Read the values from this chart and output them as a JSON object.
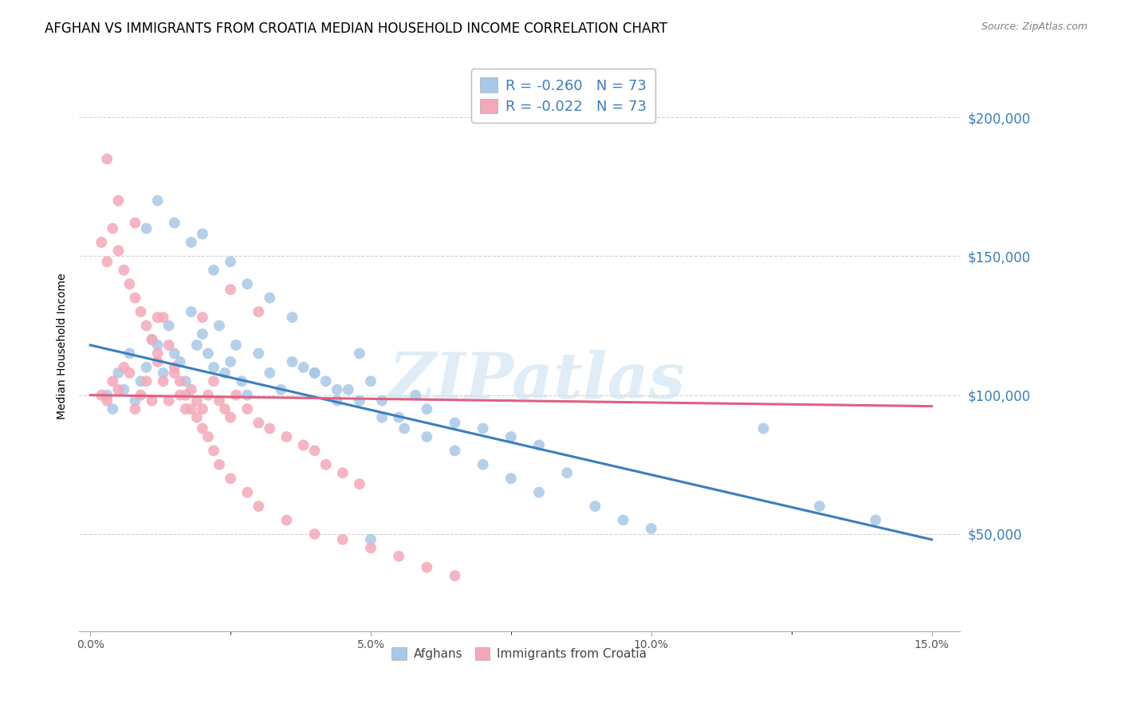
{
  "title": "AFGHAN VS IMMIGRANTS FROM CROATIA MEDIAN HOUSEHOLD INCOME CORRELATION CHART",
  "source": "Source: ZipAtlas.com",
  "ylabel": "Median Household Income",
  "xlabel_ticks": [
    "0.0%",
    "",
    "5.0%",
    "",
    "10.0%",
    "",
    "15.0%"
  ],
  "xlabel_vals": [
    0.0,
    0.025,
    0.05,
    0.075,
    0.1,
    0.125,
    0.15
  ],
  "ytick_labels": [
    "$50,000",
    "$100,000",
    "$150,000",
    "$200,000"
  ],
  "ytick_vals": [
    50000,
    100000,
    150000,
    200000
  ],
  "xlim": [
    -0.002,
    0.155
  ],
  "ylim": [
    15000,
    220000
  ],
  "watermark": "ZIPatlas",
  "blue_scatter_x": [
    0.003,
    0.004,
    0.005,
    0.006,
    0.007,
    0.008,
    0.009,
    0.01,
    0.011,
    0.012,
    0.013,
    0.014,
    0.015,
    0.016,
    0.017,
    0.018,
    0.019,
    0.02,
    0.021,
    0.022,
    0.023,
    0.024,
    0.025,
    0.026,
    0.027,
    0.028,
    0.03,
    0.032,
    0.034,
    0.036,
    0.038,
    0.04,
    0.042,
    0.044,
    0.046,
    0.048,
    0.05,
    0.052,
    0.055,
    0.058,
    0.06,
    0.065,
    0.07,
    0.075,
    0.08,
    0.01,
    0.012,
    0.015,
    0.018,
    0.02,
    0.022,
    0.025,
    0.028,
    0.032,
    0.036,
    0.04,
    0.044,
    0.048,
    0.052,
    0.056,
    0.06,
    0.065,
    0.07,
    0.075,
    0.08,
    0.09,
    0.095,
    0.1,
    0.12,
    0.13,
    0.14,
    0.085,
    0.05
  ],
  "blue_scatter_y": [
    100000,
    95000,
    108000,
    102000,
    115000,
    98000,
    105000,
    110000,
    120000,
    118000,
    108000,
    125000,
    115000,
    112000,
    105000,
    130000,
    118000,
    122000,
    115000,
    110000,
    125000,
    108000,
    112000,
    118000,
    105000,
    100000,
    115000,
    108000,
    102000,
    112000,
    110000,
    108000,
    105000,
    98000,
    102000,
    115000,
    105000,
    98000,
    92000,
    100000,
    95000,
    90000,
    88000,
    85000,
    82000,
    160000,
    170000,
    162000,
    155000,
    158000,
    145000,
    148000,
    140000,
    135000,
    128000,
    108000,
    102000,
    98000,
    92000,
    88000,
    85000,
    80000,
    75000,
    70000,
    65000,
    60000,
    55000,
    52000,
    88000,
    60000,
    55000,
    72000,
    48000
  ],
  "pink_scatter_x": [
    0.002,
    0.003,
    0.004,
    0.005,
    0.006,
    0.007,
    0.008,
    0.009,
    0.01,
    0.011,
    0.012,
    0.013,
    0.014,
    0.015,
    0.016,
    0.017,
    0.018,
    0.019,
    0.02,
    0.021,
    0.022,
    0.023,
    0.024,
    0.025,
    0.026,
    0.028,
    0.03,
    0.032,
    0.035,
    0.038,
    0.04,
    0.042,
    0.045,
    0.048,
    0.002,
    0.003,
    0.004,
    0.005,
    0.006,
    0.007,
    0.008,
    0.009,
    0.01,
    0.011,
    0.012,
    0.013,
    0.014,
    0.015,
    0.016,
    0.017,
    0.018,
    0.019,
    0.02,
    0.021,
    0.022,
    0.023,
    0.025,
    0.028,
    0.03,
    0.035,
    0.04,
    0.045,
    0.05,
    0.055,
    0.06,
    0.065,
    0.03,
    0.025,
    0.02,
    0.003,
    0.005,
    0.008,
    0.012
  ],
  "pink_scatter_y": [
    100000,
    98000,
    105000,
    102000,
    110000,
    108000,
    95000,
    100000,
    105000,
    98000,
    112000,
    105000,
    98000,
    108000,
    100000,
    95000,
    102000,
    98000,
    95000,
    100000,
    105000,
    98000,
    95000,
    92000,
    100000,
    95000,
    90000,
    88000,
    85000,
    82000,
    80000,
    75000,
    72000,
    68000,
    155000,
    148000,
    160000,
    152000,
    145000,
    140000,
    135000,
    130000,
    125000,
    120000,
    115000,
    128000,
    118000,
    110000,
    105000,
    100000,
    95000,
    92000,
    88000,
    85000,
    80000,
    75000,
    70000,
    65000,
    60000,
    55000,
    50000,
    48000,
    45000,
    42000,
    38000,
    35000,
    130000,
    138000,
    128000,
    185000,
    170000,
    162000,
    128000
  ],
  "blue_line_x": [
    0.0,
    0.15
  ],
  "blue_line_y": [
    118000,
    48000
  ],
  "pink_line_x": [
    0.0,
    0.15
  ],
  "pink_line_y": [
    100000,
    96000
  ],
  "scatter_size": 100,
  "blue_color": "#a8c8e8",
  "pink_color": "#f4a8b8",
  "blue_line_color": "#3a7ebf",
  "pink_line_color": "#e06080",
  "grid_color": "#c8c8c8",
  "bg_color": "#ffffff",
  "title_fontsize": 12,
  "axis_label_fontsize": 10,
  "tick_fontsize": 10,
  "ytick_color": "#3a7ebf"
}
